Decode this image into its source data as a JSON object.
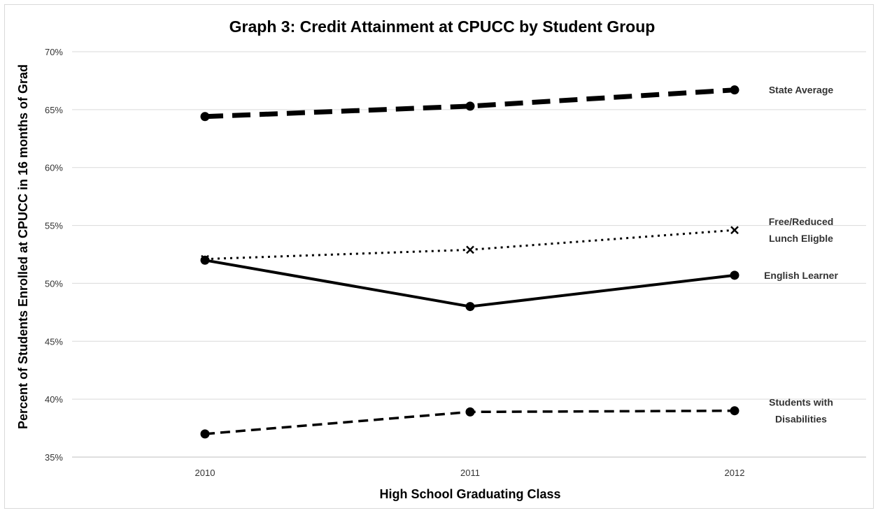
{
  "chart_data": {
    "type": "line",
    "title": "Graph 3: Credit Attainment at CPUCC by Student Group",
    "xlabel": "High School Graduating Class",
    "ylabel": "Percent of Students Enrolled at CPUCC in 16 months of Grad",
    "x": [
      "2010",
      "2011",
      "2012"
    ],
    "ylim": [
      35,
      70
    ],
    "yticks": [
      35,
      40,
      45,
      50,
      55,
      60,
      65,
      70
    ],
    "ytick_format": "%",
    "grid": "horizontal",
    "legend": "direct labels at right end of lines",
    "series": [
      {
        "name": "State Average",
        "label_lines": [
          "State Average"
        ],
        "values": [
          64.4,
          65.3,
          66.7
        ],
        "line_style": "long-dash",
        "marker": "circle",
        "color": "#000000"
      },
      {
        "name": "Free/Reduced Lunch Eligble",
        "label_lines": [
          "Free/Reduced",
          "Lunch Eligble"
        ],
        "values": [
          52.1,
          52.9,
          54.6
        ],
        "line_style": "dotted",
        "marker": "cross",
        "color": "#000000"
      },
      {
        "name": "English Learner",
        "label_lines": [
          "English Learner"
        ],
        "values": [
          52.0,
          48.0,
          50.7
        ],
        "line_style": "solid",
        "marker": "circle",
        "color": "#000000"
      },
      {
        "name": "Students with Disabilities",
        "label_lines": [
          "Students with",
          "Disabilities"
        ],
        "values": [
          37.0,
          38.9,
          39.0
        ],
        "line_style": "short-dash",
        "marker": "circle",
        "color": "#000000"
      }
    ]
  }
}
